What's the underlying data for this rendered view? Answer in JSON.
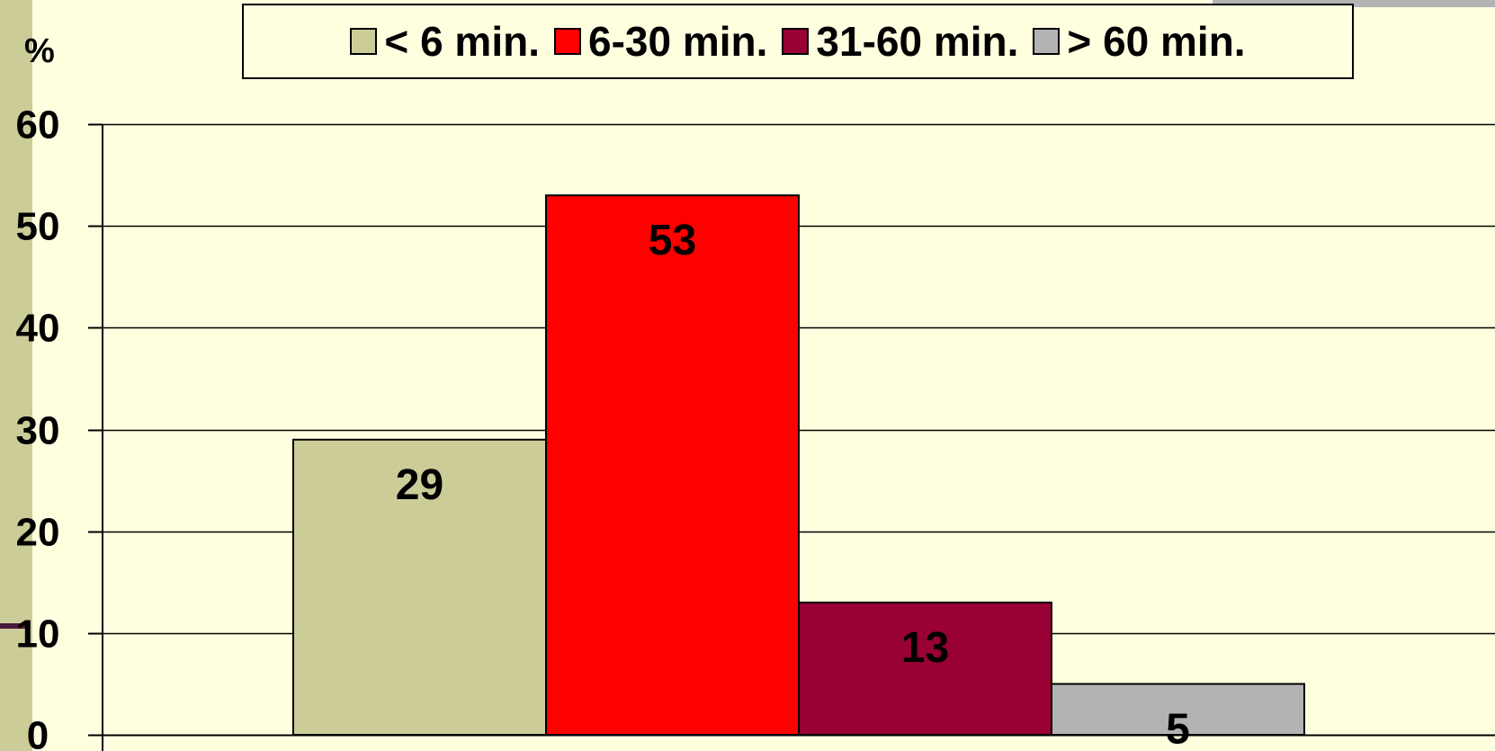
{
  "chart_data": {
    "type": "bar",
    "title": "",
    "xlabel": "",
    "ylabel": "%",
    "ylim": [
      0,
      60
    ],
    "yticks": [
      0,
      10,
      20,
      30,
      40,
      50,
      60
    ],
    "grid": true,
    "legend_position": "top",
    "categories": [
      "< 6 min.",
      "6-30 min.",
      "31-60 min.",
      "> 60 min."
    ],
    "values": [
      29,
      53,
      13,
      5
    ],
    "data_labels": [
      "29",
      "53",
      "13",
      "5"
    ],
    "colors": [
      "#CCCC99",
      "#FF0000",
      "#990033",
      "#B3B3B3"
    ]
  },
  "legend": {
    "items": [
      {
        "label": "< 6 min.",
        "color": "#CCCC99"
      },
      {
        "label": "6-30 min.",
        "color": "#FF0000"
      },
      {
        "label": "31-60 min.",
        "color": "#990033"
      },
      {
        "label": "> 60 min.",
        "color": "#B3B3B3"
      }
    ]
  },
  "colors": {
    "background": "#FFFFE0",
    "left_strip": "#CCCC99",
    "left_tick": "#4B1A3D",
    "top_right_block": "#B3B3B3"
  }
}
